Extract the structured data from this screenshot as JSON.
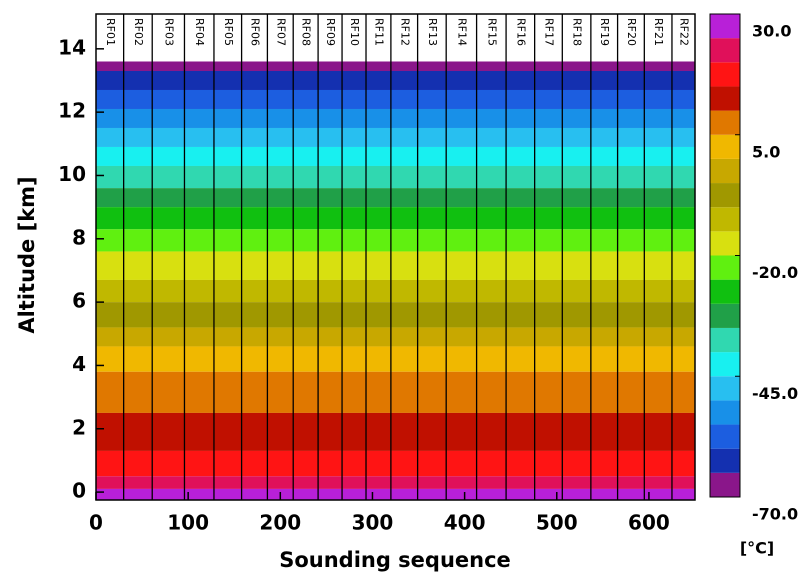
{
  "chart_data": {
    "type": "contour",
    "xlabel": "Sounding sequence",
    "ylabel": "Altitude [km]",
    "xlim": [
      0,
      650
    ],
    "ylim": [
      -0.25,
      15.1
    ],
    "xticks": [
      0,
      100,
      200,
      300,
      400,
      500,
      600
    ],
    "yticks": [
      0,
      2,
      4,
      6,
      8,
      10,
      12,
      14
    ],
    "flights": {
      "labels": [
        "RF01",
        "RF02",
        "RF03",
        "RF04",
        "RF05",
        "RF06",
        "RF07",
        "RF08",
        "RF09",
        "RF10",
        "RF11",
        "RF12",
        "RF13",
        "RF14",
        "RF15",
        "RF16",
        "RF17",
        "RF18",
        "RF19",
        "RF20",
        "RF21",
        "RF22"
      ],
      "boundaries": [
        30,
        61,
        96,
        128,
        158,
        186,
        214,
        241,
        267,
        293,
        320,
        349,
        380,
        413,
        445,
        476,
        506,
        537,
        566,
        595,
        625
      ]
    },
    "sounding_top": 13.6,
    "levels": [
      -70,
      -65,
      -60,
      -55,
      -50,
      -45,
      -40,
      -35,
      -30,
      -25,
      -20,
      -15,
      -10,
      -5,
      0,
      5,
      10,
      15,
      20,
      25,
      30
    ],
    "isotherm_altitudes": [
      null,
      13.3,
      12.7,
      12.1,
      11.5,
      10.9,
      10.3,
      9.6,
      9.0,
      8.3,
      7.6,
      6.7,
      6.0,
      5.2,
      4.6,
      3.8,
      2.5,
      1.3,
      0.5,
      0.1,
      null
    ],
    "colors": [
      "#8a168a",
      "#1430b0",
      "#1c5ee0",
      "#1890e8",
      "#28bff0",
      "#18f0f0",
      "#30d8b0",
      "#20a048",
      "#10c010",
      "#60f010",
      "#d8e010",
      "#c0b800",
      "#a09800",
      "#c8a800",
      "#f0b800",
      "#e07800",
      "#c01000",
      "#ff1414",
      "#e0105a",
      "#b820d8"
    ],
    "colorbar_ticks": [
      {
        "value": 30,
        "label": "30.0"
      },
      {
        "value": 5,
        "label": "5.0"
      },
      {
        "value": -20,
        "label": "-20.0"
      },
      {
        "value": -45,
        "label": "-45.0"
      },
      {
        "value": -70,
        "label": "-70.0"
      }
    ],
    "colorbar_unit": "[°C]"
  }
}
